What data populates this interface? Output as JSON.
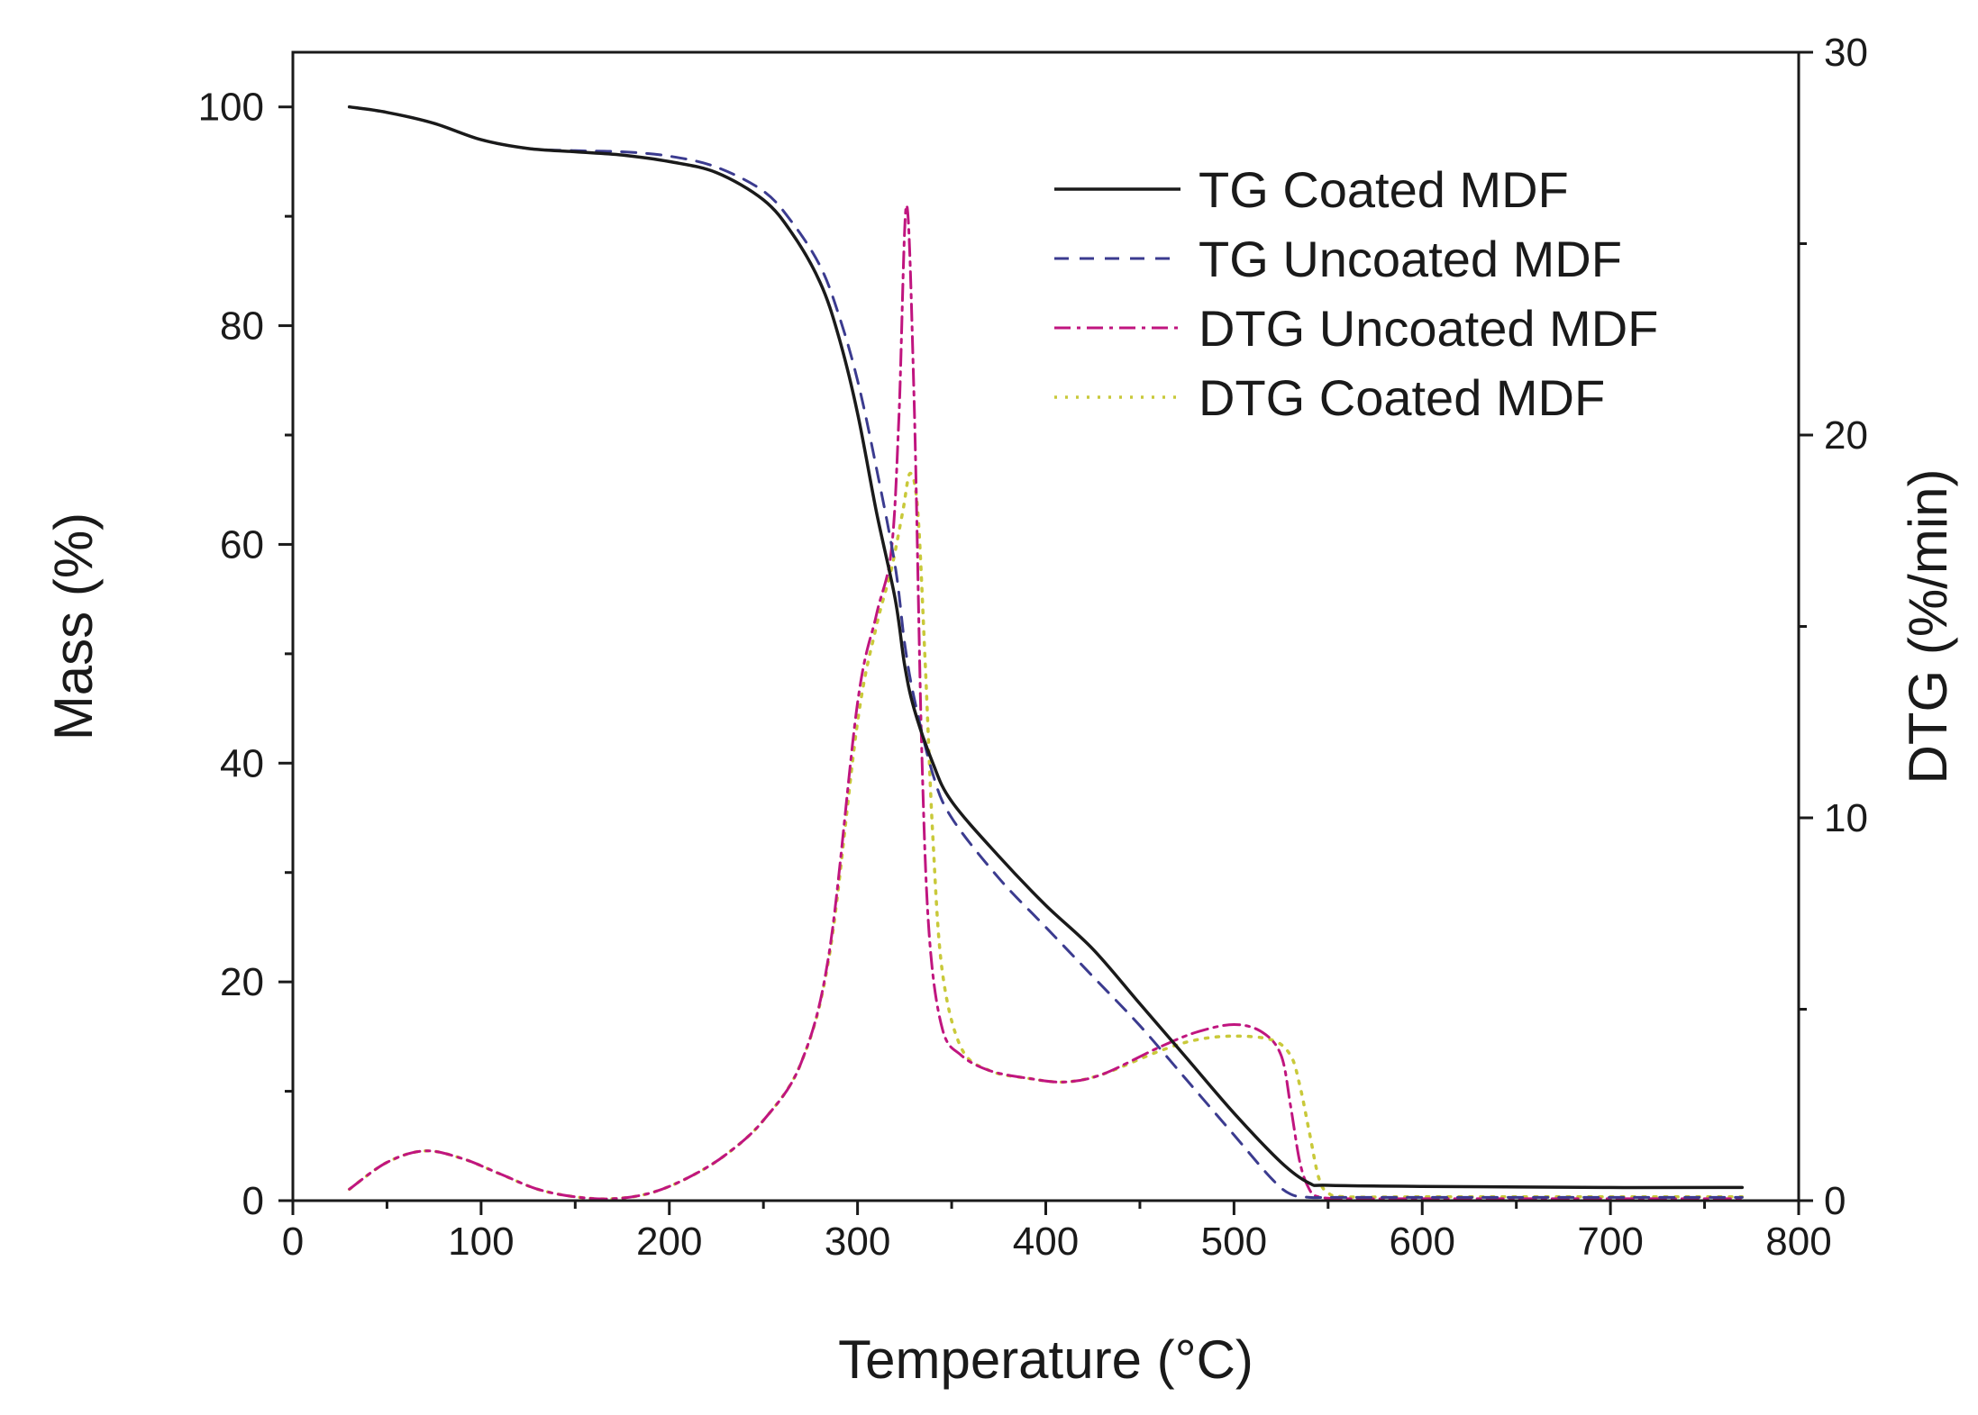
{
  "chart_data": {
    "type": "line",
    "title": "",
    "xlabel": "Temperature (°C)",
    "ylabel_left": "Mass (%)",
    "ylabel_right": "DTG (%/min)",
    "xlim": [
      0,
      800
    ],
    "ylim_left": [
      0,
      105
    ],
    "ylim_right": [
      0,
      30
    ],
    "x_ticks": [
      "0",
      "100",
      "200",
      "300",
      "400",
      "500",
      "600",
      "700",
      "800"
    ],
    "y_left_ticks": [
      "0",
      "20",
      "40",
      "60",
      "80",
      "100"
    ],
    "y_right_ticks": [
      "0",
      "10",
      "20",
      "30"
    ],
    "grid": false,
    "legend_position": "top-right",
    "colors": {
      "tg_coated": "#1a1a1a",
      "tg_uncoated": "#3b3b8f",
      "dtg_uncoated": "#c0157f",
      "dtg_coated": "#c9c93a"
    },
    "series": [
      {
        "name": "TG Coated MDF",
        "axis": "left",
        "style": "solid",
        "x": [
          30,
          50,
          75,
          100,
          125,
          150,
          175,
          200,
          225,
          250,
          265,
          280,
          290,
          300,
          310,
          320,
          325,
          330,
          340,
          350,
          375,
          400,
          425,
          450,
          475,
          500,
          525,
          540,
          550,
          600,
          700,
          770
        ],
        "y": [
          100,
          99.5,
          98.5,
          97,
          96.2,
          95.9,
          95.6,
          95,
          94,
          91.5,
          88.5,
          84,
          79,
          72,
          63,
          55,
          49,
          45,
          40,
          36.5,
          31.5,
          27,
          23,
          18,
          13,
          8,
          3.5,
          1.6,
          1.4,
          1.3,
          1.2,
          1.2
        ]
      },
      {
        "name": "TG Uncoated MDF",
        "axis": "left",
        "style": "dashed",
        "x": [
          30,
          50,
          75,
          100,
          125,
          150,
          175,
          200,
          225,
          250,
          265,
          280,
          290,
          300,
          310,
          320,
          325,
          330,
          340,
          350,
          375,
          400,
          425,
          450,
          475,
          500,
          520,
          530,
          540,
          550,
          600,
          700,
          770
        ],
        "y": [
          100,
          99.5,
          98.5,
          97,
          96.2,
          96,
          95.9,
          95.5,
          94.5,
          92.3,
          89.5,
          85.5,
          81,
          75,
          67,
          58,
          51,
          46,
          39,
          35,
          29.5,
          25,
          20.5,
          16,
          11,
          6,
          2,
          0.6,
          0.3,
          0.3,
          0.3,
          0.3,
          0.3
        ]
      },
      {
        "name": "DTG Uncoated MDF",
        "axis": "right",
        "style": "dash-dot",
        "x": [
          30,
          50,
          70,
          90,
          110,
          130,
          150,
          170,
          190,
          210,
          230,
          250,
          270,
          285,
          300,
          310,
          318,
          322,
          326,
          330,
          334,
          338,
          345,
          355,
          370,
          390,
          410,
          430,
          460,
          480,
          500,
          515,
          525,
          530,
          535,
          540,
          545,
          560,
          600,
          700,
          770
        ],
        "y": [
          0.3,
          1,
          1.3,
          1.1,
          0.7,
          0.3,
          0.1,
          0.05,
          0.2,
          0.6,
          1.2,
          2.1,
          3.6,
          6.5,
          13,
          15.3,
          17,
          20.5,
          26,
          21,
          12,
          7,
          4.5,
          3.8,
          3.4,
          3.2,
          3.1,
          3.3,
          4,
          4.4,
          4.6,
          4.4,
          3.8,
          2.5,
          1,
          0.3,
          0.1,
          0.05,
          0.05,
          0.05,
          0.05
        ]
      },
      {
        "name": "DTG Coated MDF",
        "axis": "right",
        "style": "dotted",
        "x": [
          30,
          50,
          70,
          90,
          110,
          130,
          150,
          170,
          190,
          210,
          230,
          250,
          270,
          285,
          300,
          310,
          318,
          324,
          328,
          332,
          336,
          340,
          345,
          355,
          370,
          390,
          410,
          430,
          460,
          480,
          500,
          520,
          530,
          535,
          540,
          545,
          550,
          560,
          600,
          700,
          770
        ],
        "y": [
          0.3,
          1,
          1.3,
          1.1,
          0.7,
          0.3,
          0.1,
          0.05,
          0.2,
          0.6,
          1.2,
          2.1,
          3.6,
          6.4,
          12.5,
          15,
          16.5,
          18,
          19,
          18,
          14,
          9.5,
          6,
          4,
          3.4,
          3.2,
          3.1,
          3.3,
          3.9,
          4.2,
          4.3,
          4.2,
          3.8,
          3,
          1.8,
          0.6,
          0.2,
          0.1,
          0.1,
          0.1,
          0.1
        ]
      }
    ]
  }
}
